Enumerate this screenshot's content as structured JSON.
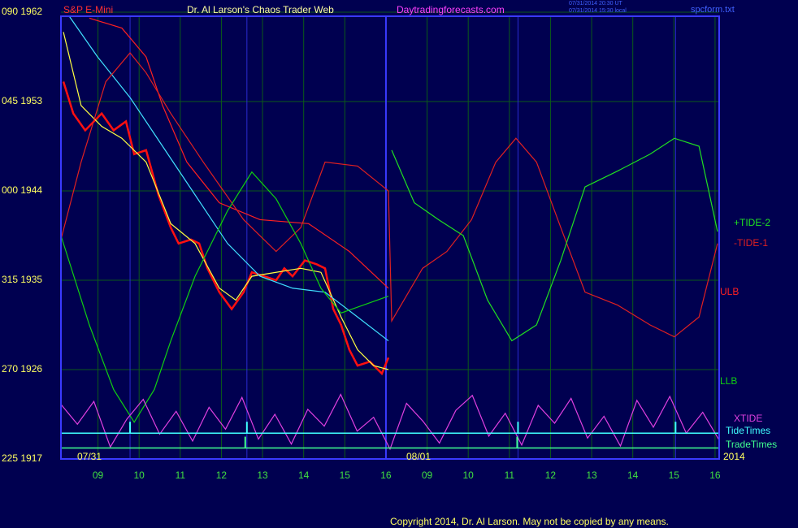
{
  "chart_data": {
    "type": "line",
    "instrument": "S&P E-Mini",
    "title": "Dr. Al Larson's Chaos Trader Web",
    "site": "Daytradingforecasts.com",
    "timestamps": [
      "07/31/2014 20:30 UT",
      "07/31/2014 15:30 local"
    ],
    "file": "spcform.txt",
    "date_labels": [
      "07/31",
      "08/01"
    ],
    "year": "2014",
    "copyright": "Copyright 2014, Dr. Al Larson. May not be copied by any means.",
    "grid": true,
    "xlim": [
      0.1,
      16.1
    ],
    "xticks": [
      {
        "value": 1,
        "label": "09"
      },
      {
        "value": 2,
        "label": "10"
      },
      {
        "value": 3,
        "label": "11"
      },
      {
        "value": 4,
        "label": "12"
      },
      {
        "value": 5,
        "label": "13"
      },
      {
        "value": 6,
        "label": "14"
      },
      {
        "value": 7,
        "label": "15"
      },
      {
        "value": 8,
        "label": "16"
      },
      {
        "value": 9,
        "label": "09"
      },
      10,
      11,
      12,
      13,
      14,
      15,
      16
    ],
    "ylim": [
      1917,
      1962
    ],
    "yticks": [
      {
        "value": 1962,
        "label": "090 1962"
      },
      {
        "value": 1953,
        "label": "045 1953"
      },
      {
        "value": 1944,
        "label": "000 1944"
      },
      {
        "value": 1935,
        "label": "315 1935"
      },
      {
        "value": 1926,
        "label": "270 1926"
      },
      {
        "value": 1917,
        "label": "225 1917"
      }
    ],
    "series": [
      {
        "color": "#ff1010",
        "x": [
          0.16,
          0.4,
          0.69,
          1.09,
          1.38,
          1.68,
          1.88,
          2.17,
          2.47,
          2.77,
          2.96,
          3.26,
          3.46,
          3.66,
          3.95,
          4.25,
          4.54,
          4.74,
          5.04,
          5.33,
          5.53,
          5.73,
          6.03,
          6.32,
          6.52,
          6.72,
          6.91,
          7.11,
          7.31,
          7.61,
          7.9,
          8.06
        ],
        "values": [
          1955.0,
          1951.8,
          1950.1,
          1951.8,
          1950.1,
          1951.0,
          1947.7,
          1948.1,
          1943.6,
          1940.3,
          1938.7,
          1939.1,
          1938.7,
          1936.2,
          1933.8,
          1932.1,
          1933.8,
          1935.8,
          1935.4,
          1935.0,
          1936.2,
          1935.4,
          1937.0,
          1936.6,
          1936.2,
          1932.1,
          1930.5,
          1928.0,
          1926.4,
          1926.8,
          1925.6,
          1927.2
        ]
      },
      {
        "color": "#ffff40",
        "x": [
          0.16,
          0.59,
          1.09,
          1.58,
          2.17,
          2.77,
          3.36,
          3.95,
          4.35,
          4.74,
          5.33,
          5.93,
          6.42,
          6.91,
          7.31,
          7.7,
          8.06
        ],
        "values": [
          1960.0,
          1952.6,
          1950.5,
          1949.3,
          1946.9,
          1940.7,
          1938.7,
          1934.2,
          1933.0,
          1935.4,
          1935.8,
          1936.2,
          1935.8,
          1931.3,
          1928.0,
          1926.4,
          1926.0
        ]
      },
      {
        "color": "#40e0ff",
        "x": [
          0.3,
          0.99,
          1.78,
          2.57,
          3.36,
          4.15,
          4.94,
          5.73,
          6.52,
          7.31,
          8.06
        ],
        "values": [
          1961.6,
          1957.5,
          1953.4,
          1948.5,
          1943.6,
          1938.7,
          1935.4,
          1934.2,
          1933.8,
          1931.3,
          1928.9
        ]
      },
      {
        "name": "ULB",
        "color": "#ff2020",
        "x": [
          0.79,
          1.58,
          2.17,
          2.57,
          3.16,
          3.95,
          4.94,
          6.12,
          7.11,
          8.06
        ],
        "values": [
          1961.4,
          1960.4,
          1957.5,
          1952.6,
          1946.9,
          1942.8,
          1941.1,
          1940.7,
          1937.9,
          1934.2
        ]
      },
      {
        "name": "-TIDE-1",
        "color": "#e02020",
        "x": [
          0.1,
          0.59,
          1.19,
          1.78,
          2.17,
          2.77,
          3.56,
          4.54,
          5.33,
          5.93,
          6.52,
          7.31,
          8.06,
          8.14,
          8.89,
          9.48,
          10.08,
          10.67,
          11.16,
          11.66,
          12.25,
          12.84,
          13.63,
          14.42,
          15.01,
          15.61,
          16.06
        ],
        "values": [
          1939.1,
          1946.9,
          1955.0,
          1957.9,
          1955.9,
          1951.8,
          1946.9,
          1941.1,
          1937.9,
          1940.3,
          1946.9,
          1946.5,
          1944.0,
          1930.9,
          1936.2,
          1937.9,
          1941.1,
          1946.9,
          1949.3,
          1946.9,
          1940.3,
          1933.8,
          1932.5,
          1930.5,
          1929.3,
          1931.3,
          1938.7
        ]
      },
      {
        "name": "+TIDE-2",
        "color": "#20e020",
        "x": [
          8.14,
          8.69,
          9.28,
          9.88,
          10.47,
          11.06,
          11.66,
          12.25,
          12.84,
          13.63,
          14.42,
          15.01,
          15.61,
          16.06
        ],
        "values": [
          1948.1,
          1942.8,
          1941.1,
          1939.5,
          1933.0,
          1928.9,
          1930.5,
          1937.0,
          1944.4,
          1946.0,
          1947.7,
          1949.3,
          1948.5,
          1939.9
        ]
      },
      {
        "name": "LLB",
        "color": "#10d010",
        "x": [
          0.1,
          0.79,
          1.38,
          1.88,
          2.37,
          2.77,
          3.36,
          4.15,
          4.74,
          5.33,
          5.93,
          6.42,
          6.91,
          8.06
        ],
        "values": [
          1939.5,
          1930.5,
          1924.0,
          1920.7,
          1924.0,
          1928.9,
          1935.4,
          1942.0,
          1945.9,
          1943.2,
          1938.7,
          1934.2,
          1931.7,
          1933.4
        ]
      },
      {
        "name": "XTIDE",
        "color": "#e040e0",
        "x": [
          0.1,
          0.5,
          0.9,
          1.3,
          1.7,
          2.1,
          2.5,
          2.9,
          3.3,
          3.7,
          4.1,
          4.5,
          4.9,
          5.3,
          5.7,
          6.1,
          6.5,
          6.9,
          7.3,
          7.7,
          8.1,
          8.5,
          8.9,
          9.3,
          9.7,
          10.1,
          10.5,
          10.9,
          11.3,
          11.7,
          12.1,
          12.5,
          12.9,
          13.3,
          13.7,
          14.1,
          14.5,
          14.9,
          15.3,
          15.7,
          16.1
        ],
        "values": [
          1922.5,
          1920.5,
          1922.8,
          1918.2,
          1921.0,
          1923.0,
          1919.5,
          1921.8,
          1918.8,
          1922.2,
          1920.0,
          1923.2,
          1919.0,
          1921.5,
          1918.5,
          1922.0,
          1920.3,
          1923.5,
          1919.8,
          1921.2,
          1918.0,
          1922.6,
          1920.8,
          1918.6,
          1921.9,
          1923.4,
          1919.3,
          1921.6,
          1918.4,
          1922.4,
          1920.6,
          1923.1,
          1919.1,
          1921.3,
          1918.3,
          1922.9,
          1920.2,
          1923.3,
          1919.6,
          1921.7,
          1918.9
        ]
      }
    ],
    "time_markers": [
      {
        "name": "TideTimes",
        "color": "#40ffff",
        "level": 1919.6,
        "x": [
          1.78,
          4.62,
          11.21,
          15.04
        ]
      },
      {
        "name": "TradeTimes",
        "color": "#40ff90",
        "level": 1918.1,
        "x": [
          4.58,
          11.19
        ]
      }
    ]
  }
}
